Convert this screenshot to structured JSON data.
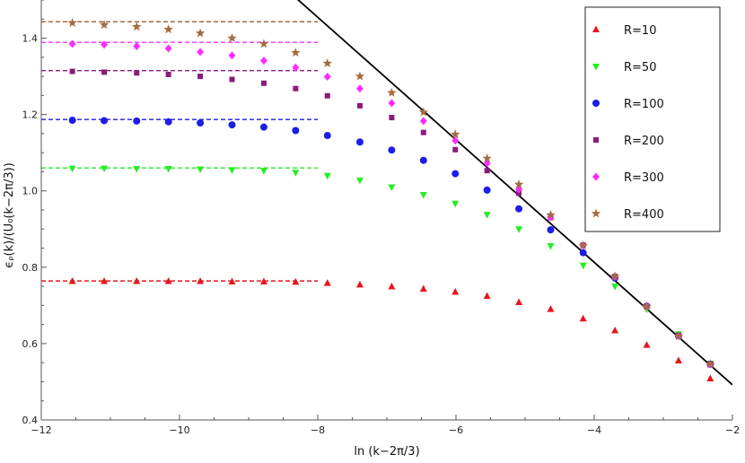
{
  "chart_data": {
    "type": "scatter",
    "xlabel": "ln (k−2π/3)",
    "ylabel": "ϵᵨ(k)/(U₀(k−2π/3))",
    "xlim": [
      -12,
      -2
    ],
    "ylim": [
      0.4,
      1.5
    ],
    "x_ticks": [
      -12,
      -10,
      -8,
      -6,
      -4,
      -2
    ],
    "x_tick_labels": [
      "−12",
      "−10",
      "−8",
      "−6",
      "−4",
      "−2"
    ],
    "y_ticks": [
      0.4,
      0.6,
      0.8,
      1.0,
      1.2,
      1.4
    ],
    "y_tick_labels": [
      "0.4",
      "0.6",
      "0.8",
      "1.0",
      "1.2",
      "1.4"
    ],
    "grid": false,
    "legend_position": "top-right",
    "x": [
      -11.55,
      -11.09,
      -10.62,
      -10.16,
      -9.7,
      -9.24,
      -8.78,
      -8.32,
      -7.86,
      -7.39,
      -6.93,
      -6.47,
      -6.01,
      -5.55,
      -5.09,
      -4.63,
      -4.16,
      -3.7,
      -3.24,
      -2.78,
      -2.32
    ],
    "series": [
      {
        "name": "R=10",
        "marker": "triangle-up",
        "color": "#e8141b",
        "values": [
          0.763,
          0.763,
          0.763,
          0.763,
          0.763,
          0.762,
          0.762,
          0.761,
          0.758,
          0.754,
          0.749,
          0.743,
          0.735,
          0.724,
          0.708,
          0.69,
          0.665,
          0.634,
          0.596,
          0.555,
          0.508
        ],
        "asymptote": 0.764
      },
      {
        "name": "R=50",
        "marker": "triangle-down",
        "color": "#22ee22",
        "values": [
          1.059,
          1.059,
          1.058,
          1.058,
          1.057,
          1.055,
          1.053,
          1.048,
          1.04,
          1.028,
          1.01,
          0.99,
          0.967,
          0.938,
          0.9,
          0.856,
          0.805,
          0.75,
          0.69,
          0.625,
          0.548
        ],
        "asymptote": 1.06
      },
      {
        "name": "R=100",
        "marker": "circle",
        "color": "#1a1ee6",
        "values": [
          1.185,
          1.184,
          1.183,
          1.181,
          1.178,
          1.173,
          1.167,
          1.158,
          1.145,
          1.128,
          1.107,
          1.08,
          1.045,
          1.002,
          0.953,
          0.898,
          0.838,
          0.772,
          0.698,
          0.62,
          0.546
        ],
        "asymptote": 1.187
      },
      {
        "name": "R=200",
        "marker": "square",
        "color": "#8b1a7d",
        "values": [
          1.313,
          1.311,
          1.309,
          1.305,
          1.3,
          1.292,
          1.282,
          1.268,
          1.249,
          1.223,
          1.192,
          1.153,
          1.108,
          1.053,
          0.994,
          0.93,
          0.858,
          0.776,
          0.698,
          0.621,
          0.546
        ],
        "asymptote": 1.315
      },
      {
        "name": "R=300",
        "marker": "diamond",
        "color": "#ff2cff",
        "values": [
          1.385,
          1.383,
          1.379,
          1.373,
          1.364,
          1.355,
          1.341,
          1.323,
          1.299,
          1.268,
          1.23,
          1.183,
          1.132,
          1.072,
          1.004,
          0.931,
          0.857,
          0.775,
          0.697,
          0.62,
          0.546
        ],
        "asymptote": 1.389
      },
      {
        "name": "R=400",
        "marker": "star",
        "color": "#a56b3e",
        "values": [
          1.44,
          1.435,
          1.43,
          1.423,
          1.413,
          1.4,
          1.385,
          1.362,
          1.334,
          1.3,
          1.257,
          1.206,
          1.148,
          1.085,
          1.017,
          0.937,
          0.857,
          0.776,
          0.697,
          0.62,
          0.546
        ],
        "asymptote": 1.443
      }
    ],
    "reference_line": {
      "color": "#000000",
      "x": [
        -8.5,
        -2.0
      ],
      "y": [
        1.535,
        0.492
      ]
    },
    "asymptote_x_range": [
      -12,
      -8
    ]
  }
}
